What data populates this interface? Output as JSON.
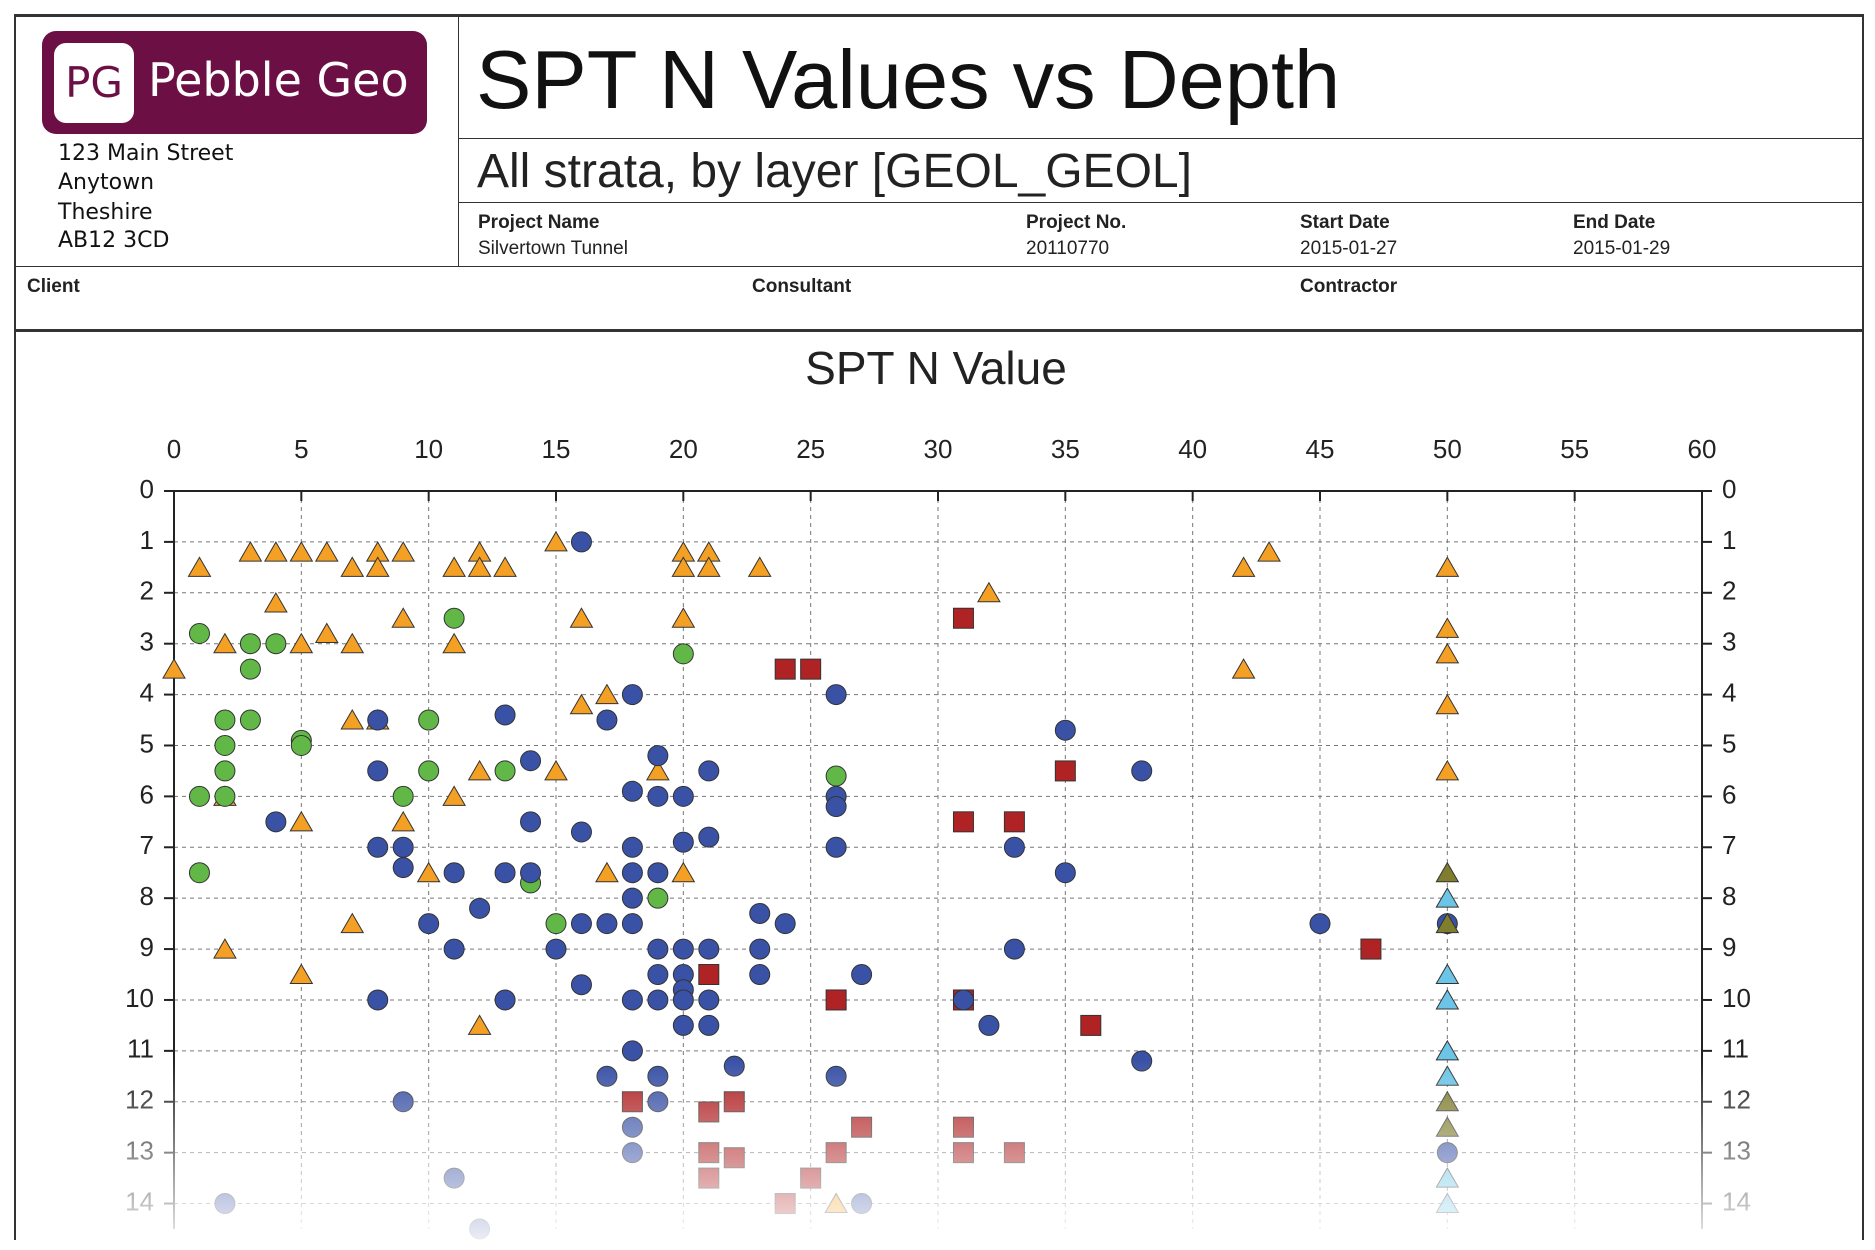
{
  "header": {
    "logo": {
      "initials": "PG",
      "name": "Pebble Geo"
    },
    "address": [
      "123 Main Street",
      "Anytown",
      "Theshire",
      "AB12 3CD"
    ],
    "title": "SPT N Values vs Depth",
    "subtitle": "All strata, by layer [GEOL_GEOL]",
    "fields": [
      {
        "label": "Project Name",
        "value": "Silvertown Tunnel"
      },
      {
        "label": "Project No.",
        "value": "20110770"
      },
      {
        "label": "Start Date",
        "value": "2015-01-27"
      },
      {
        "label": "End Date",
        "value": "2015-01-29"
      }
    ],
    "parties": [
      "Client",
      "Consultant",
      "Contractor"
    ]
  },
  "chart_data": {
    "type": "scatter",
    "title": "SPT N Value",
    "xlim": [
      0,
      60
    ],
    "xticks": [
      0,
      5,
      10,
      15,
      20,
      25,
      30,
      35,
      40,
      45,
      50,
      55,
      60
    ],
    "ylim": [
      14.5,
      0
    ],
    "yticks": [
      0,
      1,
      2,
      3,
      4,
      5,
      6,
      7,
      8,
      9,
      10,
      11,
      12,
      13,
      14
    ],
    "grid": true,
    "x_axis_position": "top",
    "mirror_y_axis": true,
    "series": [
      {
        "marker": "triangle",
        "color": "#f4a024",
        "x": [
          15,
          3,
          4,
          5,
          6,
          8,
          9,
          12,
          20,
          21,
          43,
          1,
          7,
          8,
          11,
          12,
          13,
          20,
          21,
          23,
          42,
          50,
          32,
          4,
          9,
          16,
          20,
          50,
          6,
          2,
          5,
          7,
          11,
          50,
          0,
          42,
          17,
          16,
          50,
          7,
          8,
          12,
          15,
          19,
          50,
          2,
          11,
          5,
          9,
          10,
          17,
          20,
          7,
          2,
          5,
          12,
          26
        ],
        "y": [
          1.0,
          1.2,
          1.2,
          1.2,
          1.2,
          1.2,
          1.2,
          1.2,
          1.2,
          1.2,
          1.2,
          1.5,
          1.5,
          1.5,
          1.5,
          1.5,
          1.5,
          1.5,
          1.5,
          1.5,
          1.5,
          1.5,
          2.0,
          2.2,
          2.5,
          2.5,
          2.5,
          2.7,
          2.8,
          3.0,
          3.0,
          3.0,
          3.0,
          3.2,
          3.5,
          3.5,
          4.0,
          4.2,
          4.2,
          4.5,
          4.5,
          5.5,
          5.5,
          5.5,
          5.5,
          6.0,
          6.0,
          6.5,
          6.5,
          7.5,
          7.5,
          7.5,
          8.5,
          9.0,
          9.5,
          10.5,
          14.0
        ]
      },
      {
        "marker": "circle",
        "color": "#62b847",
        "x": [
          11,
          1,
          3,
          4,
          20,
          3,
          2,
          3,
          10,
          5,
          5,
          2,
          2,
          10,
          13,
          26,
          1,
          2,
          9,
          1,
          14,
          19,
          15
        ],
        "y": [
          2.5,
          2.8,
          3.0,
          3.0,
          3.2,
          3.5,
          4.5,
          4.5,
          4.5,
          4.9,
          5.0,
          5.0,
          5.5,
          5.5,
          5.5,
          5.6,
          6.0,
          6.0,
          6.0,
          7.5,
          7.7,
          8.0,
          8.5
        ]
      },
      {
        "marker": "square",
        "color": "#b02325",
        "x": [
          31,
          24,
          25,
          35,
          31,
          33,
          47,
          21,
          26,
          31,
          36,
          18,
          22,
          21,
          27,
          31,
          21,
          22,
          26,
          31,
          33,
          21,
          25,
          24
        ],
        "y": [
          2.5,
          3.5,
          3.5,
          5.5,
          6.5,
          6.5,
          9,
          9.5,
          10,
          10,
          10.5,
          12,
          12,
          12.2,
          12.5,
          12.5,
          13,
          13.1,
          13,
          13,
          13,
          13.5,
          13.5,
          14
        ]
      },
      {
        "marker": "circle",
        "color": "#3a52a6",
        "x": [
          16,
          18,
          26,
          13,
          17,
          8,
          35,
          19,
          14,
          8,
          21,
          38,
          18,
          19,
          20,
          26,
          26,
          4,
          14,
          16,
          21,
          20,
          8,
          9,
          18,
          26,
          33,
          9,
          11,
          13,
          14,
          18,
          19,
          35,
          18,
          12,
          23,
          10,
          16,
          17,
          18,
          24,
          45,
          50,
          11,
          15,
          19,
          20,
          21,
          23,
          33,
          19,
          20,
          23,
          27,
          16,
          20,
          8,
          13,
          18,
          19,
          20,
          21,
          31,
          20,
          21,
          32,
          18,
          38,
          22,
          17,
          19,
          26,
          9,
          19,
          18,
          18,
          50,
          11,
          2,
          27,
          12
        ],
        "y": [
          1,
          4,
          4,
          4.4,
          4.5,
          4.5,
          4.7,
          5.2,
          5.3,
          5.5,
          5.5,
          5.5,
          5.9,
          6,
          6,
          6,
          6.2,
          6.5,
          6.5,
          6.7,
          6.8,
          6.9,
          7,
          7,
          7,
          7,
          7,
          7.4,
          7.5,
          7.5,
          7.5,
          7.5,
          7.5,
          7.5,
          8,
          8.2,
          8.3,
          8.5,
          8.5,
          8.5,
          8.5,
          8.5,
          8.5,
          8.5,
          9,
          9,
          9,
          9,
          9,
          9,
          9,
          9.5,
          9.5,
          9.5,
          9.5,
          9.7,
          9.8,
          10,
          10,
          10,
          10,
          10,
          10,
          10,
          10.5,
          10.5,
          10.5,
          11,
          11.2,
          11.3,
          11.5,
          11.5,
          11.5,
          12,
          12,
          12.5,
          13,
          13,
          13.5,
          14,
          14,
          14.5
        ]
      },
      {
        "marker": "triangle",
        "color": "#6cc4e6",
        "x": [
          50,
          50,
          50,
          50,
          50,
          50,
          50
        ],
        "y": [
          8,
          9.5,
          10,
          11,
          11.5,
          13.5,
          14
        ]
      },
      {
        "marker": "triangle",
        "color": "#7f7d2e",
        "x": [
          50,
          50,
          50,
          50
        ],
        "y": [
          7.5,
          8.5,
          12,
          12.5
        ]
      }
    ]
  }
}
